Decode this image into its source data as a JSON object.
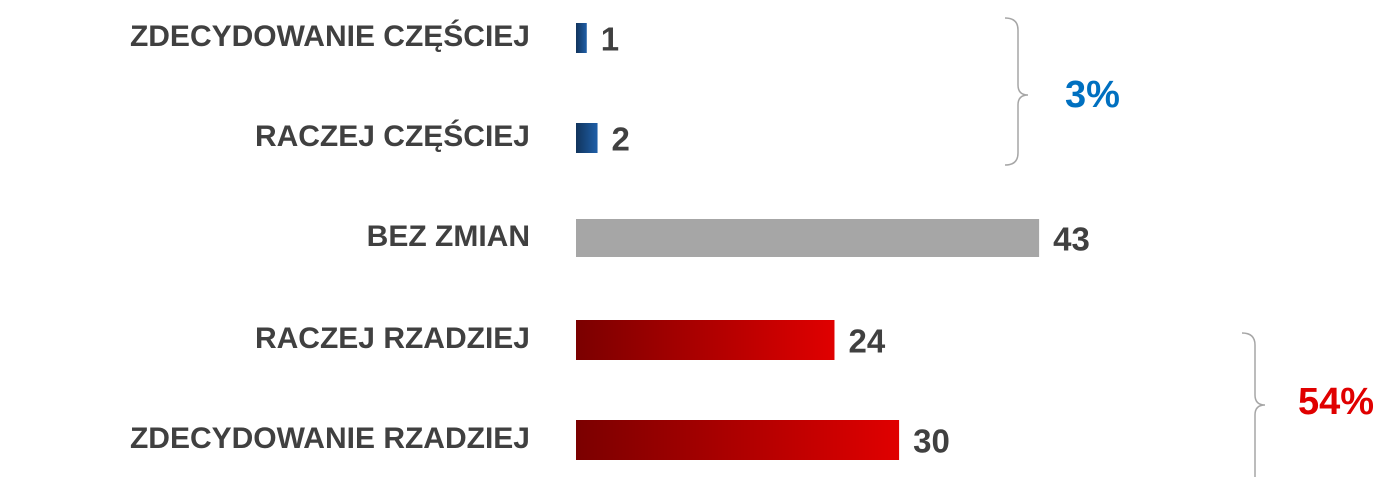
{
  "chart_data": {
    "type": "bar",
    "orientation": "horizontal",
    "categories": [
      "ZDECYDOWANIE CZĘŚCIEJ",
      "RACZEJ CZĘŚCIEJ",
      "BEZ ZMIAN",
      "RACZEJ RZADZIEJ",
      "ZDECYDOWANIE RZADZIEJ"
    ],
    "values": [
      1,
      2,
      43,
      24,
      30
    ],
    "colors": [
      "#1f5fa8",
      "#1f5fa8",
      "#a6a6a6",
      "#e00000",
      "#e00000"
    ],
    "annotations": [
      {
        "text": "3%",
        "color": "#0070c0"
      },
      {
        "text": "54%",
        "color": "#e00000"
      }
    ]
  }
}
